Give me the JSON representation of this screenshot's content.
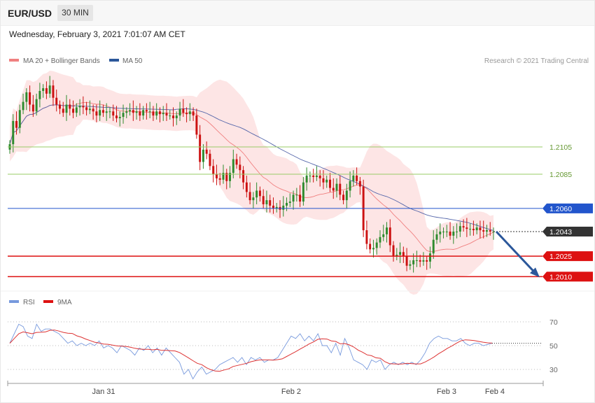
{
  "header": {
    "symbol": "EUR/USD",
    "timeframe": "30 MIN",
    "datetime": "Wednesday, February 3, 2021 7:01:07 AM CET"
  },
  "price_legend": {
    "ma20_label": "MA 20 + Bollinger Bands",
    "ma50_label": "MA 50",
    "copyright": "Research © 2021 Trading Central"
  },
  "rsi_legend": {
    "rsi_label": "RSI",
    "ma_label": "9MA"
  },
  "colors": {
    "up": "#2e8b2e",
    "down": "#cc1111",
    "bollinger_fill": "#fde0e0",
    "ma20": "#f08080",
    "ma50": "#5566aa",
    "resistance": "#99cc66",
    "pivot": "#2255cc",
    "support": "#dd1111",
    "current": "#333333",
    "arrow": "#2b579a",
    "rsi": "#7799dd",
    "rsi_ma": "#dd3333"
  },
  "chart_data": {
    "type": "candlestick",
    "x_labels": [
      "Jan 31",
      "Feb 2",
      "Feb 3",
      "Feb 4"
    ],
    "y_range": [
      1.2,
      1.216
    ],
    "close_series": [
      1.2107,
      1.2124,
      1.2119,
      1.2132,
      1.2138,
      1.2145,
      1.2136,
      1.2131,
      1.214,
      1.2146,
      1.2148,
      1.2144,
      1.215,
      1.2141,
      1.2136,
      1.2133,
      1.213,
      1.2136,
      1.2133,
      1.213,
      1.2134,
      1.2135,
      1.2134,
      1.2132,
      1.2133,
      1.2131,
      1.2128,
      1.2132,
      1.213,
      1.2131,
      1.2131,
      1.2128,
      1.2126,
      1.2127,
      1.213,
      1.2131,
      1.2132,
      1.213,
      1.2131,
      1.2128,
      1.2132,
      1.2131,
      1.2131,
      1.2128,
      1.2131,
      1.2129,
      1.213,
      1.2128,
      1.2128,
      1.2126,
      1.2128,
      1.2133,
      1.213,
      1.2129,
      1.2131,
      1.2128,
      1.2114,
      1.2094,
      1.2103,
      1.21,
      1.2091,
      1.2085,
      1.2082,
      1.2081,
      1.2086,
      1.208,
      1.2086,
      1.2096,
      1.2092,
      1.2088,
      1.2079,
      1.2072,
      1.2066,
      1.2068,
      1.2073,
      1.2069,
      1.2063,
      1.2066,
      1.2062,
      1.206,
      1.2061,
      1.2059,
      1.2062,
      1.2064,
      1.2065,
      1.207,
      1.207,
      1.2065,
      1.2079,
      1.2084,
      1.2084,
      1.2083,
      1.2084,
      1.2082,
      1.2079,
      1.2081,
      1.2075,
      1.2073,
      1.2078,
      1.207,
      1.2066,
      1.2073,
      1.208,
      1.2084,
      1.208,
      1.2076,
      1.2044,
      1.2034,
      1.203,
      1.2031,
      1.2035,
      1.2039,
      1.2041,
      1.2046,
      1.2033,
      1.2025,
      1.2026,
      1.2028,
      1.2025,
      1.2018,
      1.2019,
      1.2022,
      1.2022,
      1.2021,
      1.2022,
      1.2021,
      1.2027,
      1.2037,
      1.2041,
      1.2043,
      1.2043,
      1.2043,
      1.204,
      1.2043,
      1.2043,
      1.2047,
      1.2046,
      1.2045,
      1.2045,
      1.2044,
      1.2046,
      1.2044,
      1.2043,
      1.2044,
      1.2043,
      1.2043
    ],
    "ma20_last": 1.2036,
    "ma50_last": 1.2047,
    "levels": [
      {
        "label": "1.2105",
        "value": 1.2105,
        "type": "resistance"
      },
      {
        "label": "1.2085",
        "value": 1.2085,
        "type": "resistance"
      },
      {
        "label": "1.2060",
        "value": 1.206,
        "type": "pivot"
      },
      {
        "label": "1.2043",
        "value": 1.2043,
        "type": "current"
      },
      {
        "label": "1.2025",
        "value": 1.2025,
        "type": "support"
      },
      {
        "label": "1.2010",
        "value": 1.201,
        "type": "support"
      }
    ],
    "forecast_arrow": {
      "from": 1.2043,
      "to": 1.201
    },
    "rsi": {
      "y_range": [
        20,
        80
      ],
      "levels": [
        {
          "label": "70",
          "value": 70
        },
        {
          "label": "50",
          "value": 50
        },
        {
          "label": "30",
          "value": 30
        }
      ],
      "values": [
        52,
        60,
        68,
        66,
        58,
        56,
        68,
        62,
        64,
        64,
        62,
        60,
        56,
        52,
        54,
        50,
        52,
        50,
        52,
        50,
        54,
        48,
        50,
        48,
        44,
        50,
        48,
        46,
        42,
        48,
        46,
        50,
        44,
        48,
        42,
        48,
        44,
        40,
        36,
        26,
        30,
        22,
        28,
        32,
        26,
        28,
        30,
        34,
        36,
        38,
        40,
        36,
        40,
        34,
        40,
        38,
        40,
        36,
        38,
        38,
        40,
        46,
        52,
        58,
        56,
        60,
        54,
        58,
        54,
        60,
        50,
        50,
        44,
        52,
        42,
        56,
        48,
        38,
        36,
        34,
        30,
        38,
        36,
        38,
        30,
        34,
        36,
        34,
        36,
        34,
        36,
        34,
        38,
        44,
        52,
        56,
        58,
        56,
        56,
        54,
        54,
        56,
        52,
        50,
        52,
        52,
        50,
        51,
        52
      ]
    }
  }
}
